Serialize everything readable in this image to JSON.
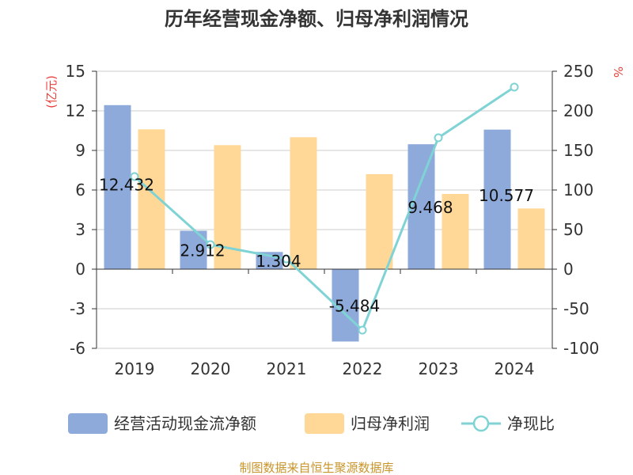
{
  "chart_data": {
    "type": "bar",
    "title": "历年经营现金净额、归母净利润情况",
    "categories": [
      "2019",
      "2020",
      "2021",
      "2022",
      "2023",
      "2024"
    ],
    "series": [
      {
        "name": "经营活动现金流净额",
        "type": "bar",
        "axis": "left",
        "color": "#8eaadb",
        "values": [
          12.432,
          2.912,
          1.304,
          -5.484,
          9.468,
          10.577
        ],
        "labels": [
          "12.432",
          "2.912",
          "1.304",
          "-5.484",
          "9.468",
          "10.577"
        ]
      },
      {
        "name": "归母净利润",
        "type": "bar",
        "axis": "left",
        "color": "#ffd898",
        "values": [
          10.6,
          9.4,
          10.0,
          7.2,
          5.7,
          4.6
        ]
      },
      {
        "name": "净现比",
        "type": "line",
        "axis": "right",
        "color": "#7fd3d5",
        "values": [
          117,
          31,
          13,
          -77,
          166,
          230
        ]
      }
    ],
    "y_left": {
      "unit": "(亿元)",
      "unit_color": "#e8413b",
      "min": -6,
      "max": 15,
      "ticks": [
        15,
        12,
        9,
        6,
        3,
        0,
        -3,
        -6
      ]
    },
    "y_right": {
      "unit": "%",
      "unit_color": "#e8413b",
      "min": -100,
      "max": 250,
      "ticks": [
        250,
        200,
        150,
        100,
        50,
        0,
        -50,
        -100
      ]
    },
    "grid": true,
    "legend_position": "bottom",
    "source": "制图数据来自恒生聚源数据库",
    "source_color": "#c8952b"
  }
}
